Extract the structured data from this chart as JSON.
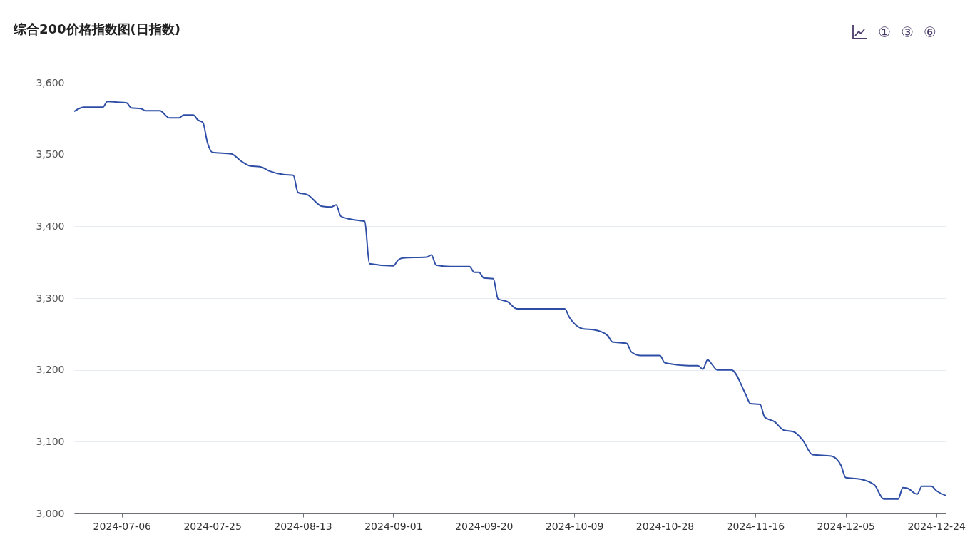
{
  "chart_data": {
    "type": "line",
    "title": "综合200价格指数图(日指数)",
    "annotations": [
      "①",
      "③",
      "⑥"
    ],
    "x": [
      "2024-06-26",
      "2024-06-27",
      "2024-06-28",
      "2024-07-02",
      "2024-07-03",
      "2024-07-05",
      "2024-07-07",
      "2024-07-08",
      "2024-07-10",
      "2024-07-11",
      "2024-07-14",
      "2024-07-16",
      "2024-07-18",
      "2024-07-19",
      "2024-07-21",
      "2024-07-22",
      "2024-07-23",
      "2024-07-24",
      "2024-07-25",
      "2024-07-29",
      "2024-07-31",
      "2024-08-02",
      "2024-08-04",
      "2024-08-06",
      "2024-08-09",
      "2024-08-11",
      "2024-08-12",
      "2024-08-14",
      "2024-08-17",
      "2024-08-19",
      "2024-08-20",
      "2024-08-21",
      "2024-08-23",
      "2024-08-25",
      "2024-08-26",
      "2024-08-27",
      "2024-09-01",
      "2024-09-02",
      "2024-09-03",
      "2024-09-08",
      "2024-09-09",
      "2024-09-10",
      "2024-09-13",
      "2024-09-17",
      "2024-09-18",
      "2024-09-19",
      "2024-09-20",
      "2024-09-22",
      "2024-09-23",
      "2024-09-25",
      "2024-09-27",
      "2024-10-07",
      "2024-10-08",
      "2024-10-11",
      "2024-10-13",
      "2024-10-16",
      "2024-10-17",
      "2024-10-20",
      "2024-10-21",
      "2024-10-23",
      "2024-10-27",
      "2024-10-28",
      "2024-11-02",
      "2024-11-04",
      "2024-11-05",
      "2024-11-06",
      "2024-11-07",
      "2024-11-08",
      "2024-11-11",
      "2024-11-14",
      "2024-11-15",
      "2024-11-17",
      "2024-11-18",
      "2024-11-20",
      "2024-11-22",
      "2024-11-24",
      "2024-11-26",
      "2024-11-28",
      "2024-12-02",
      "2024-12-04",
      "2024-12-05",
      "2024-12-08",
      "2024-12-11",
      "2024-12-13",
      "2024-12-16",
      "2024-12-17",
      "2024-12-18",
      "2024-12-20",
      "2024-12-21",
      "2024-12-23",
      "2024-12-24",
      "2024-12-26"
    ],
    "series": [
      {
        "color": "#2e4ea6",
        "values": [
          3560,
          3564,
          3566,
          3566,
          3574,
          3573,
          3572,
          3565,
          3564,
          3561,
          3561,
          3551,
          3551,
          3555,
          3555,
          3548,
          3545,
          3516,
          3503,
          3501,
          3491,
          3484,
          3483,
          3477,
          3472,
          3471,
          3447,
          3444,
          3428,
          3427,
          3430,
          3414,
          3410,
          3408,
          3407,
          3348,
          3345,
          3353,
          3356,
          3357,
          3360,
          3346,
          3344,
          3344,
          3336,
          3336,
          3328,
          3327,
          3299,
          3295,
          3285,
          3285,
          3273,
          3257,
          3256,
          3248,
          3239,
          3237,
          3225,
          3220,
          3220,
          3210,
          3206,
          3206,
          3201,
          3214,
          3207,
          3200,
          3200,
          3166,
          3153,
          3152,
          3134,
          3128,
          3116,
          3114,
          3102,
          3082,
          3080,
          3067,
          3050,
          3048,
          3040,
          3020,
          3020,
          3036,
          3035,
          3027,
          3038,
          3038,
          3032,
          3025
        ]
      }
    ],
    "xlim": [
      "2024-06-26",
      "2024-12-26"
    ],
    "xticks": [
      "2024-07-06",
      "2024-07-25",
      "2024-08-13",
      "2024-09-01",
      "2024-09-20",
      "2024-10-09",
      "2024-10-28",
      "2024-11-16",
      "2024-12-05",
      "2024-12-24"
    ],
    "ylim": [
      3000,
      3600
    ],
    "yticks": [
      {
        "value": 3000,
        "label": "3,000"
      },
      {
        "value": 3100,
        "label": "3,100"
      },
      {
        "value": 3200,
        "label": "3,200"
      },
      {
        "value": 3300,
        "label": "3,300"
      },
      {
        "value": 3400,
        "label": "3,400"
      },
      {
        "value": 3500,
        "label": "3,500"
      },
      {
        "value": 3600,
        "label": "3,600"
      }
    ],
    "grid": "y",
    "marker": "none",
    "line_style": "solid"
  }
}
